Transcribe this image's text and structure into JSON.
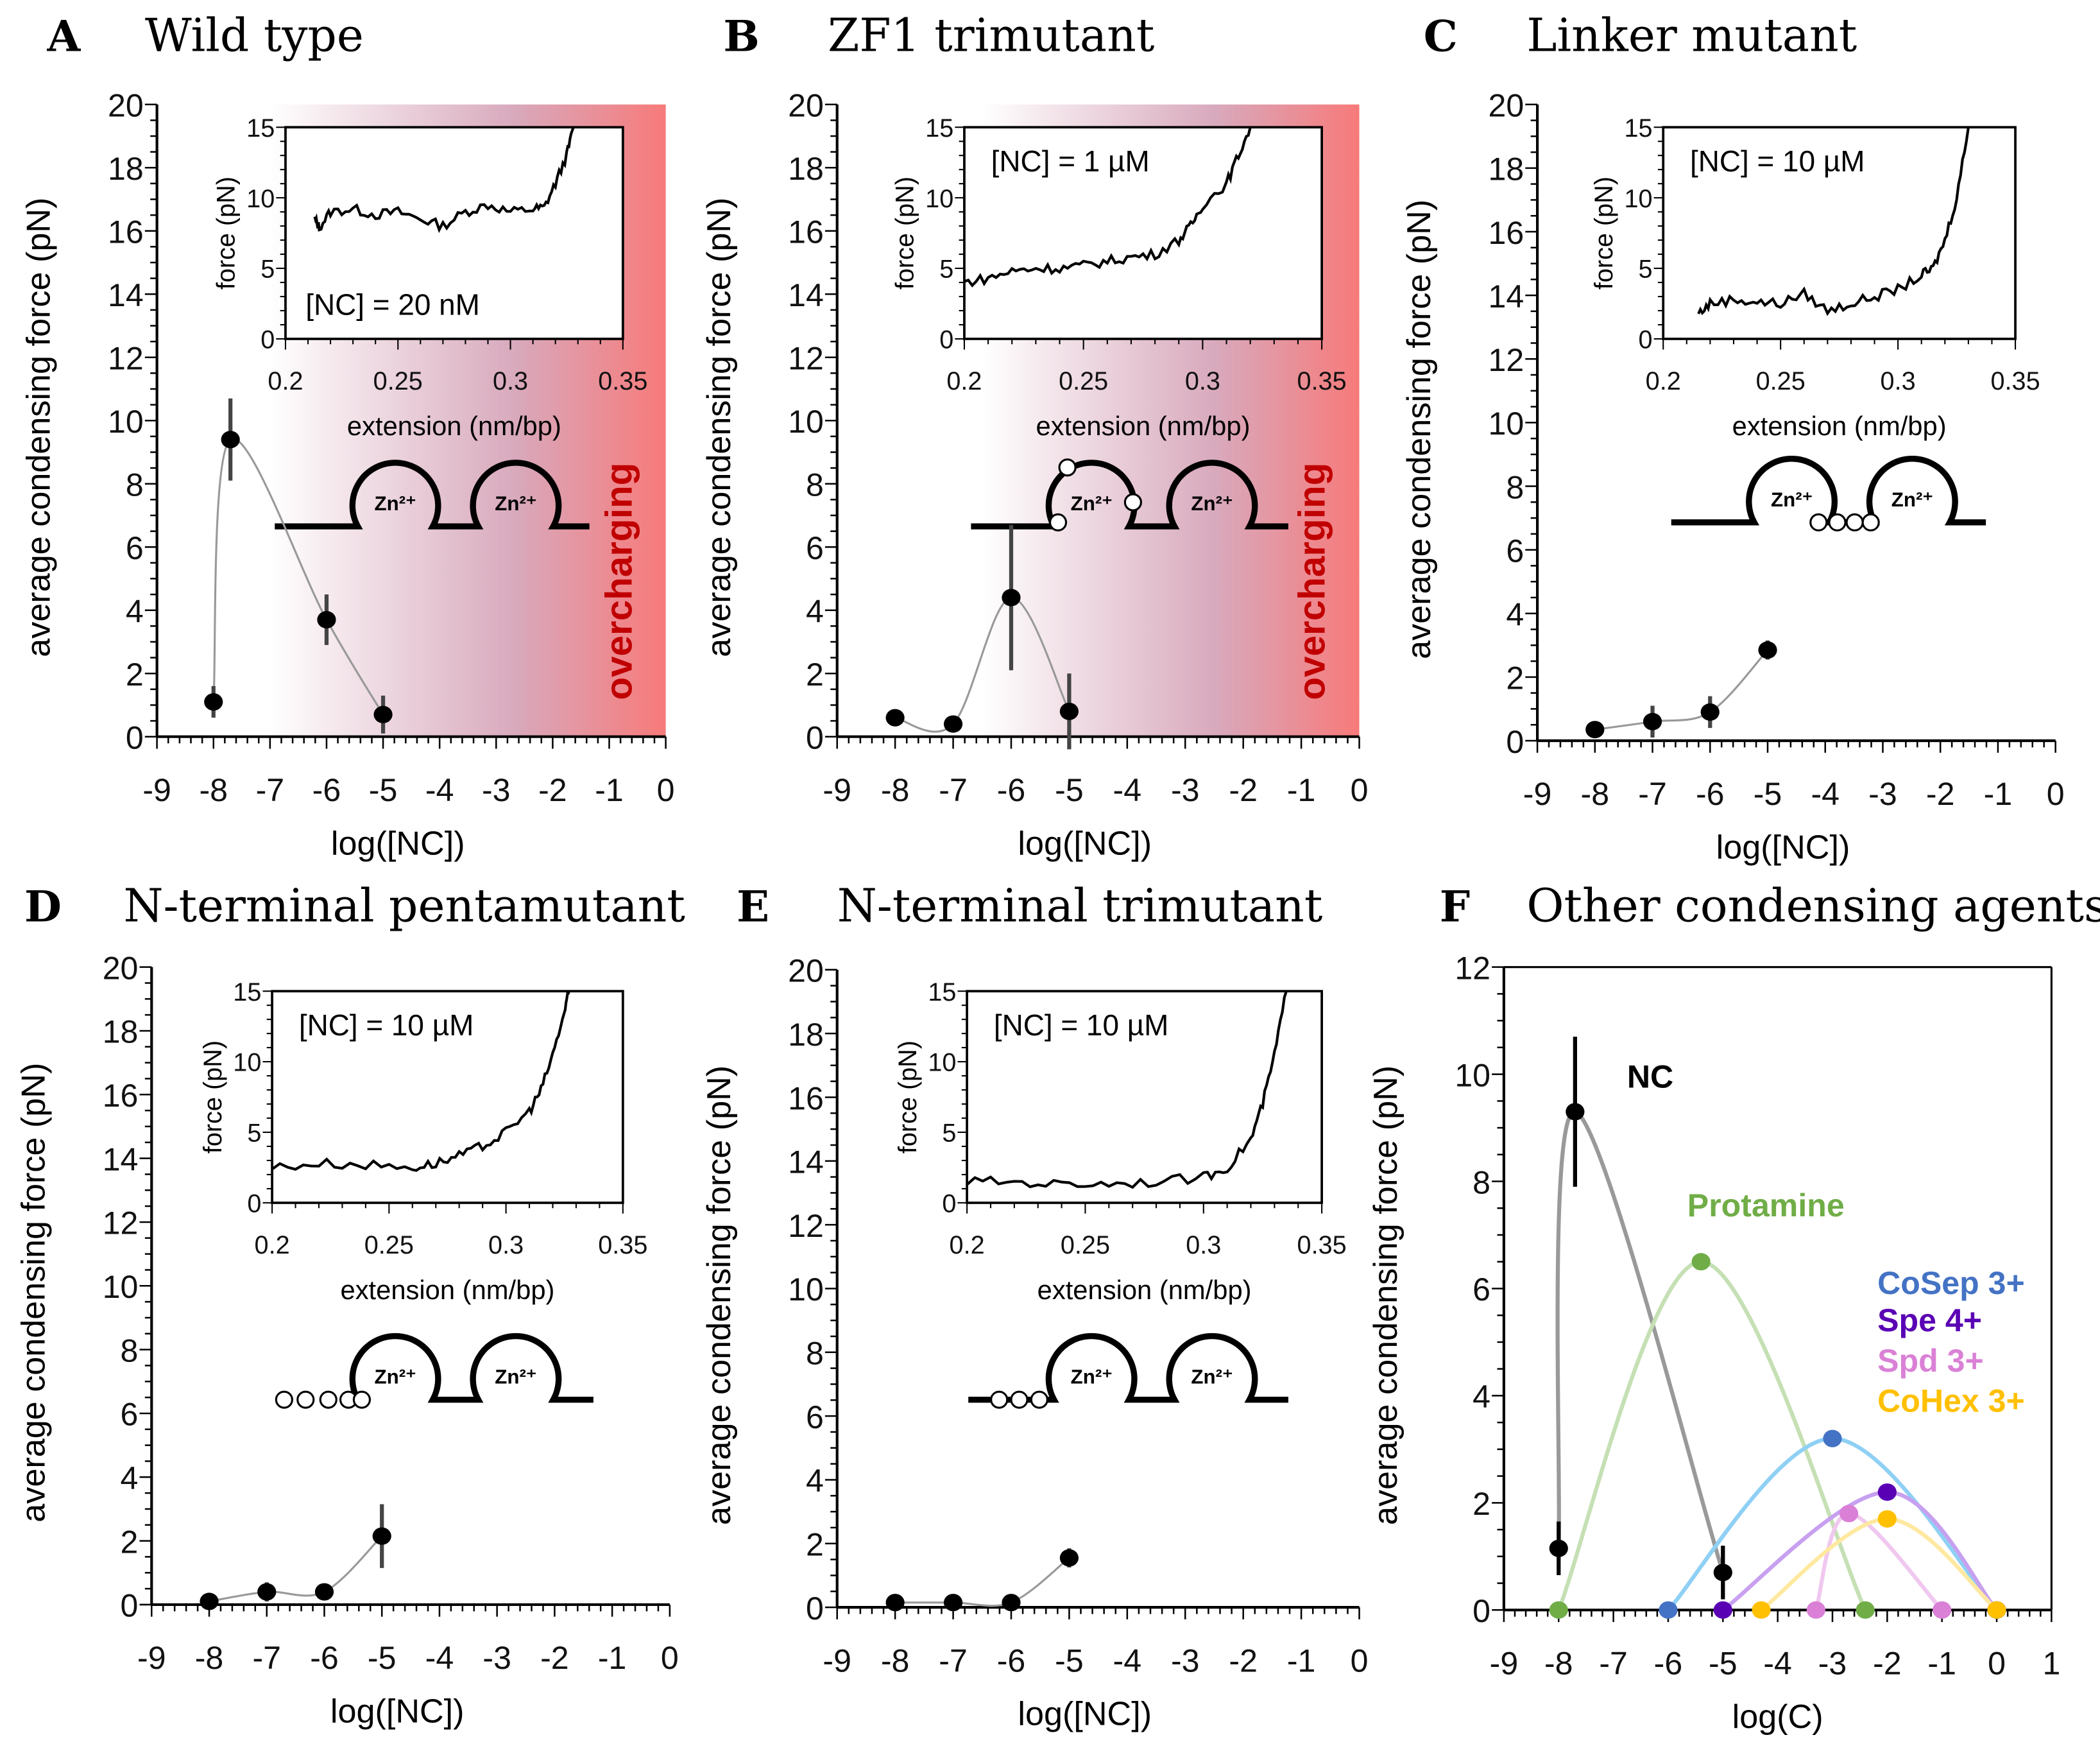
{
  "zn_label": "Zn²⁺",
  "overcharging_label": "overcharging",
  "colors": {
    "overcharge_start": "#ffffff",
    "overcharge_mid": "#d8a9bc",
    "overcharge_end": "#f77a7a",
    "overcharge_text": "#c00000",
    "fit": "#999999",
    "point": "#000000"
  },
  "chart_data": [
    {
      "type": "scatter",
      "letter": "A",
      "title": "Wild type",
      "xlabel": "log([NC])",
      "ylabel": "average condensing force (pN)",
      "xlim": [
        -9,
        0
      ],
      "ylim": [
        0,
        20
      ],
      "xticks": [
        -9,
        -8,
        -7,
        -6,
        -5,
        -4,
        -3,
        -2,
        -1,
        0
      ],
      "yticks": [
        0,
        2,
        4,
        6,
        8,
        10,
        12,
        14,
        16,
        18,
        20
      ],
      "overcharging": {
        "from": -7,
        "to": 0
      },
      "points": [
        {
          "x": -8,
          "y": 1.1,
          "err": 0.5
        },
        {
          "x": -7.7,
          "y": 9.4,
          "err": 1.3
        },
        {
          "x": -6,
          "y": 3.7,
          "err": 0.8
        },
        {
          "x": -5,
          "y": 0.7,
          "err": 0.6
        }
      ],
      "inset": {
        "label": "[NC] = 20 nM",
        "xlabel": "extension (nm/bp)",
        "ylabel": "force (pN)",
        "xlim": [
          0.2,
          0.35
        ],
        "ylim": [
          0,
          15
        ],
        "xticks": [
          "0.2",
          "0.25",
          "0.3",
          "0.35"
        ],
        "yticks": [
          "0",
          "5",
          "10",
          "15"
        ],
        "trace": [
          [
            0.213,
            8.5
          ],
          [
            0.215,
            7.9
          ],
          [
            0.22,
            9
          ],
          [
            0.23,
            9.2
          ],
          [
            0.24,
            8.8
          ],
          [
            0.25,
            9
          ],
          [
            0.26,
            8.5
          ],
          [
            0.27,
            8
          ],
          [
            0.28,
            9
          ],
          [
            0.29,
            9.5
          ],
          [
            0.3,
            9
          ],
          [
            0.31,
            9.2
          ],
          [
            0.315,
            9.3
          ],
          [
            0.32,
            11
          ],
          [
            0.325,
            13
          ],
          [
            0.328,
            15
          ]
        ]
      }
    },
    {
      "type": "scatter",
      "letter": "B",
      "title": "ZF1 trimutant",
      "xlabel": "log([NC])",
      "ylabel": "average condensing force (pN)",
      "xlim": [
        -9,
        0
      ],
      "ylim": [
        0,
        20
      ],
      "xticks": [
        -9,
        -8,
        -7,
        -6,
        -5,
        -4,
        -3,
        -2,
        -1,
        0
      ],
      "yticks": [
        0,
        2,
        4,
        6,
        8,
        10,
        12,
        14,
        16,
        18,
        20
      ],
      "overcharging": {
        "from": -6.5,
        "to": 0
      },
      "points": [
        {
          "x": -8,
          "y": 0.6,
          "err": 0
        },
        {
          "x": -7,
          "y": 0.4,
          "err": 0
        },
        {
          "x": -6,
          "y": 4.4,
          "err": 2.3
        },
        {
          "x": -5,
          "y": 0.8,
          "err": 1.2
        }
      ],
      "inset": {
        "label": "[NC] = 1 µM",
        "xlabel": "extension (nm/bp)",
        "ylabel": "force (pN)",
        "xlim": [
          0.2,
          0.35
        ],
        "ylim": [
          0,
          15
        ],
        "xticks": [
          "0.2",
          "0.25",
          "0.3",
          "0.35"
        ],
        "yticks": [
          "0",
          "5",
          "10",
          "15"
        ],
        "trace": [
          [
            0.2,
            4
          ],
          [
            0.21,
            4.3
          ],
          [
            0.22,
            4.8
          ],
          [
            0.23,
            5
          ],
          [
            0.24,
            5
          ],
          [
            0.25,
            5.2
          ],
          [
            0.26,
            5.5
          ],
          [
            0.27,
            5.8
          ],
          [
            0.28,
            6
          ],
          [
            0.29,
            7
          ],
          [
            0.295,
            8
          ],
          [
            0.3,
            9.5
          ],
          [
            0.31,
            11
          ],
          [
            0.315,
            13
          ],
          [
            0.32,
            15
          ]
        ]
      }
    },
    {
      "type": "scatter",
      "letter": "C",
      "title": "Linker mutant",
      "xlabel": "log([NC])",
      "ylabel": "average condensing force (pN)",
      "xlim": [
        -9,
        0
      ],
      "ylim": [
        0,
        20
      ],
      "xticks": [
        -9,
        -8,
        -7,
        -6,
        -5,
        -4,
        -3,
        -2,
        -1,
        0
      ],
      "yticks": [
        0,
        2,
        4,
        6,
        8,
        10,
        12,
        14,
        16,
        18,
        20
      ],
      "points": [
        {
          "x": -8,
          "y": 0.35,
          "err": 0
        },
        {
          "x": -7,
          "y": 0.6,
          "err": 0.5
        },
        {
          "x": -6,
          "y": 0.9,
          "err": 0.5
        },
        {
          "x": -5,
          "y": 2.85,
          "err": 0.3
        }
      ],
      "inset": {
        "label": "[NC] = 10 µM",
        "xlabel": "extension (nm/bp)",
        "ylabel": "force (pN)",
        "xlim": [
          0.2,
          0.35
        ],
        "ylim": [
          0,
          15
        ],
        "xticks": [
          "0.2",
          "0.25",
          "0.3",
          "0.35"
        ],
        "yticks": [
          "0",
          "5",
          "10",
          "15"
        ],
        "trace": [
          [
            0.215,
            1.8
          ],
          [
            0.22,
            2.5
          ],
          [
            0.23,
            2.8
          ],
          [
            0.24,
            2.6
          ],
          [
            0.25,
            2.5
          ],
          [
            0.26,
            3.2
          ],
          [
            0.27,
            2
          ],
          [
            0.28,
            2.5
          ],
          [
            0.29,
            3
          ],
          [
            0.3,
            3.5
          ],
          [
            0.31,
            4.5
          ],
          [
            0.315,
            5
          ],
          [
            0.32,
            7
          ],
          [
            0.325,
            10
          ],
          [
            0.33,
            15
          ]
        ]
      }
    },
    {
      "type": "scatter",
      "letter": "D",
      "title": "N-terminal pentamutant",
      "xlabel": "log([NC])",
      "ylabel": "average condensing force (pN)",
      "xlim": [
        -9,
        0
      ],
      "ylim": [
        0,
        20
      ],
      "xticks": [
        -9,
        -8,
        -7,
        -6,
        -5,
        -4,
        -3,
        -2,
        -1,
        0
      ],
      "yticks": [
        0,
        2,
        4,
        6,
        8,
        10,
        12,
        14,
        16,
        18,
        20
      ],
      "points": [
        {
          "x": -8,
          "y": 0.1,
          "err": 0
        },
        {
          "x": -7,
          "y": 0.4,
          "err": 0.3
        },
        {
          "x": -6,
          "y": 0.4,
          "err": 0
        },
        {
          "x": -5,
          "y": 2.15,
          "err": 1.0
        }
      ],
      "inset": {
        "label": "[NC] = 10 µM",
        "xlabel": "extension (nm/bp)",
        "ylabel": "force (pN)",
        "xlim": [
          0.2,
          0.35
        ],
        "ylim": [
          0,
          15
        ],
        "xticks": [
          "0.2",
          "0.25",
          "0.3",
          "0.35"
        ],
        "yticks": [
          "0",
          "5",
          "10",
          "15"
        ],
        "trace": [
          [
            0.2,
            2.5
          ],
          [
            0.22,
            2.8
          ],
          [
            0.24,
            2.7
          ],
          [
            0.26,
            2.5
          ],
          [
            0.27,
            2.8
          ],
          [
            0.28,
            3.3
          ],
          [
            0.29,
            4
          ],
          [
            0.3,
            5
          ],
          [
            0.31,
            6.5
          ],
          [
            0.315,
            8
          ],
          [
            0.32,
            10.5
          ],
          [
            0.325,
            13.5
          ],
          [
            0.327,
            15
          ]
        ]
      }
    },
    {
      "type": "scatter",
      "letter": "E",
      "title": "N-terminal trimutant",
      "xlabel": "log([NC])",
      "ylabel": "average condensing force (pN)",
      "xlim": [
        -9,
        0
      ],
      "ylim": [
        0,
        20
      ],
      "xticks": [
        -9,
        -8,
        -7,
        -6,
        -5,
        -4,
        -3,
        -2,
        -1,
        0
      ],
      "yticks": [
        0,
        2,
        4,
        6,
        8,
        10,
        12,
        14,
        16,
        18,
        20
      ],
      "points": [
        {
          "x": -8,
          "y": 0.15,
          "err": 0
        },
        {
          "x": -7,
          "y": 0.15,
          "err": 0
        },
        {
          "x": -6,
          "y": 0.15,
          "err": 0
        },
        {
          "x": -5,
          "y": 1.55,
          "err": 0.3
        }
      ],
      "inset": {
        "label": "[NC] = 10 µM",
        "xlabel": "extension (nm/bp)",
        "ylabel": "force (pN)",
        "xlim": [
          0.2,
          0.35
        ],
        "ylim": [
          0,
          15
        ],
        "xticks": [
          "0.2",
          "0.25",
          "0.3",
          "0.35"
        ],
        "yticks": [
          "0",
          "5",
          "10",
          "15"
        ],
        "trace": [
          [
            0.2,
            1.5
          ],
          [
            0.22,
            1.5
          ],
          [
            0.24,
            1.3
          ],
          [
            0.26,
            1.4
          ],
          [
            0.28,
            1.5
          ],
          [
            0.3,
            1.8
          ],
          [
            0.31,
            2.5
          ],
          [
            0.32,
            4.5
          ],
          [
            0.325,
            7
          ],
          [
            0.33,
            10.5
          ],
          [
            0.335,
            15
          ]
        ]
      }
    },
    {
      "type": "line",
      "letter": "F",
      "title": "Other condensing agents",
      "xlabel": "log(C)",
      "ylabel": "average condensing force (pN)",
      "xlim": [
        -9,
        1
      ],
      "ylim": [
        0,
        12
      ],
      "xticks": [
        -9,
        -8,
        -7,
        -6,
        -5,
        -4,
        -3,
        -2,
        -1,
        0,
        1
      ],
      "yticks": [
        0,
        2,
        4,
        6,
        8,
        10,
        12
      ],
      "series": [
        {
          "name": "NC",
          "color": "#000000",
          "line": "#999999",
          "points": [
            {
              "x": -8,
              "y": 1.15,
              "err": 0.5
            },
            {
              "x": -7.7,
              "y": 9.3,
              "err": 1.4
            },
            {
              "x": -5,
              "y": 0.7,
              "err": 0.5
            }
          ]
        },
        {
          "name": "Protamine",
          "color": "#70ad47",
          "line": "#c5e0b4",
          "points": [
            {
              "x": -8,
              "y": 0
            },
            {
              "x": -5.4,
              "y": 6.5
            },
            {
              "x": -2.4,
              "y": 0
            }
          ]
        },
        {
          "name": "CoSep 3+",
          "color": "#4472c4",
          "line": "#8fd0f5",
          "points": [
            {
              "x": -6,
              "y": 0
            },
            {
              "x": -3,
              "y": 3.2
            },
            {
              "x": 0,
              "y": 0
            }
          ]
        },
        {
          "name": "Spe 4+",
          "color": "#5a00b4",
          "line": "#c8a0f0",
          "points": [
            {
              "x": -5,
              "y": 0
            },
            {
              "x": -2,
              "y": 2.2
            },
            {
              "x": 0,
              "y": 0
            }
          ]
        },
        {
          "name": "Spd 3+",
          "color": "#da80d6",
          "line": "#f0c8ef",
          "points": [
            {
              "x": -3.3,
              "y": 0
            },
            {
              "x": -2.7,
              "y": 1.8
            },
            {
              "x": -1,
              "y": 0
            }
          ]
        },
        {
          "name": "CoHex 3+",
          "color": "#ffc000",
          "line": "#ffe9a0",
          "points": [
            {
              "x": -4.3,
              "y": 0
            },
            {
              "x": -2,
              "y": 1.7
            },
            {
              "x": 0,
              "y": 0
            }
          ]
        }
      ]
    }
  ]
}
